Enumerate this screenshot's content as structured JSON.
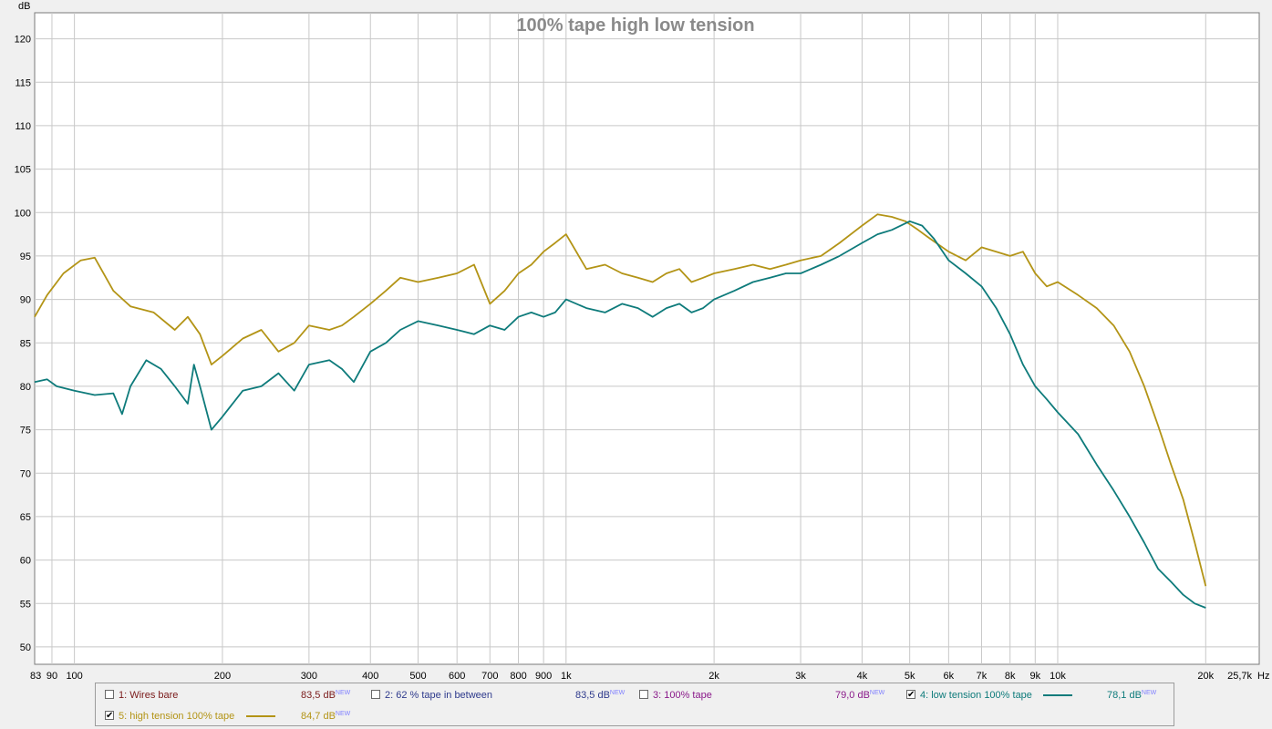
{
  "chart_data": {
    "type": "line",
    "title": "100% tape high low tension",
    "ylabel": "dB",
    "xunit": "Hz",
    "xscale": "log",
    "xlim": [
      83,
      25700
    ],
    "ylim": [
      48,
      123
    ],
    "grid": true,
    "yticks": [
      "120",
      "115",
      "110",
      "105",
      "100",
      "95",
      "90",
      "85",
      "80",
      "75",
      "70",
      "65",
      "60",
      "55",
      "50"
    ],
    "xticks": [
      "83",
      "90",
      "100",
      "200",
      "300",
      "400",
      "500",
      "600",
      "700",
      "800",
      "900",
      "1k",
      "2k",
      "3k",
      "4k",
      "5k",
      "6k",
      "7k",
      "8k",
      "9k",
      "10k",
      "20k",
      "25,7k"
    ],
    "series": [
      {
        "name": "5: high tension 100% tape",
        "color": "#b39416",
        "x": [
          83,
          88,
          95,
          103,
          110,
          120,
          130,
          145,
          160,
          170,
          180,
          190,
          200,
          220,
          240,
          260,
          280,
          300,
          330,
          350,
          370,
          400,
          430,
          460,
          500,
          550,
          600,
          650,
          700,
          750,
          800,
          850,
          900,
          950,
          1000,
          1100,
          1200,
          1300,
          1400,
          1500,
          1600,
          1700,
          1800,
          1900,
          2000,
          2200,
          2400,
          2600,
          2800,
          3000,
          3300,
          3600,
          4000,
          4300,
          4600,
          4900,
          5200,
          5500,
          6000,
          6500,
          7000,
          7500,
          8000,
          8500,
          9000,
          9500,
          10000,
          11000,
          12000,
          13000,
          14000,
          15000,
          16000,
          17000,
          18000,
          19000,
          20000
        ],
        "y": [
          88,
          90.5,
          93,
          94.5,
          94.8,
          91,
          89.2,
          88.5,
          86.5,
          88,
          86,
          82.5,
          83.5,
          85.5,
          86.5,
          84,
          85,
          87,
          86.5,
          87,
          88,
          89.5,
          91,
          92.5,
          92,
          92.5,
          93,
          94,
          89.5,
          91,
          93,
          94,
          95.5,
          96.5,
          97.5,
          93.5,
          94,
          93,
          92.5,
          92,
          93,
          93.5,
          92,
          92.5,
          93,
          93.5,
          94,
          93.5,
          94,
          94.5,
          95,
          96.5,
          98.5,
          99.8,
          99.5,
          99,
          98,
          97,
          95.5,
          94.5,
          96,
          95.5,
          95,
          95.5,
          93,
          91.5,
          92,
          90.5,
          89,
          87,
          84,
          80,
          75.5,
          71,
          67,
          62,
          57
        ]
      },
      {
        "name": "4: low tension 100% tape",
        "color": "#0e7b7b",
        "x": [
          83,
          88,
          92,
          100,
          110,
          120,
          125,
          130,
          140,
          150,
          160,
          170,
          175,
          180,
          190,
          200,
          220,
          240,
          260,
          280,
          300,
          330,
          350,
          370,
          400,
          430,
          460,
          500,
          550,
          600,
          650,
          700,
          750,
          800,
          850,
          900,
          950,
          1000,
          1100,
          1200,
          1300,
          1400,
          1500,
          1600,
          1700,
          1800,
          1900,
          2000,
          2200,
          2400,
          2600,
          2800,
          3000,
          3300,
          3600,
          4000,
          4300,
          4600,
          5000,
          5300,
          5600,
          6000,
          6500,
          7000,
          7500,
          8000,
          8500,
          9000,
          9500,
          10000,
          11000,
          12000,
          13000,
          14000,
          15000,
          16000,
          17000,
          18000,
          19000,
          20000
        ],
        "y": [
          80.5,
          80.8,
          80,
          79.5,
          79,
          79.2,
          76.8,
          80,
          83,
          82,
          80,
          78,
          82.5,
          80,
          75,
          76.5,
          79.5,
          80,
          81.5,
          79.5,
          82.5,
          83,
          82,
          80.5,
          84,
          85,
          86.5,
          87.5,
          87,
          86.5,
          86,
          87,
          86.5,
          88,
          88.5,
          88,
          88.5,
          90,
          89,
          88.5,
          89.5,
          89,
          88,
          89,
          89.5,
          88.5,
          89,
          90,
          91,
          92,
          92.5,
          93,
          93,
          94,
          95,
          96.5,
          97.5,
          98,
          99,
          98.5,
          97,
          94.5,
          93,
          91.5,
          89,
          86,
          82.5,
          80,
          78.5,
          77,
          74.5,
          71,
          68,
          65,
          62,
          59,
          57.5,
          56,
          55,
          54.5
        ]
      }
    ]
  },
  "legend": {
    "items": [
      {
        "label": "1: Wires bare",
        "value": "83,5 dB",
        "badge": "NEW",
        "checked": false,
        "color": "#7a1a1a"
      },
      {
        "label": "2: 62 % tape in between",
        "value": "83,5 dB",
        "badge": "NEW",
        "checked": false,
        "color": "#2e3a8c"
      },
      {
        "label": "3: 100% tape",
        "value": "79,0 dB",
        "badge": "NEW",
        "checked": false,
        "color": "#8a1a8a"
      },
      {
        "label": "4: low tension 100% tape",
        "value": "78,1 dB",
        "badge": "NEW",
        "checked": true,
        "color": "#0e7b7b"
      },
      {
        "label": "5: high tension 100% tape",
        "value": "84,7 dB",
        "badge": "NEW",
        "checked": true,
        "color": "#b39416"
      }
    ]
  }
}
